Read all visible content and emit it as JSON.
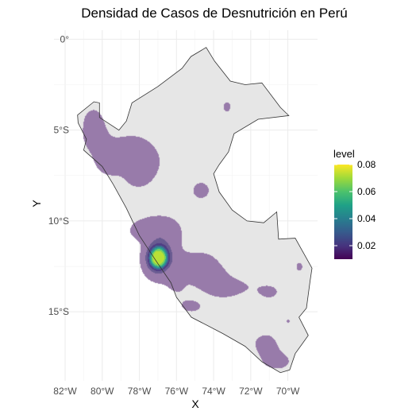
{
  "chart_data": {
    "type": "heatmap",
    "subtype": "2d-density-contour-map",
    "title": "Densidad de Casos de Desnutrición en Perú",
    "xlabel": "X",
    "ylabel": "Y",
    "xlim": [
      -82.6,
      -68.4
    ],
    "ylim": [
      -18.8,
      0.5
    ],
    "x_ticks": [
      {
        "value": -82,
        "label": "82°W"
      },
      {
        "value": -80,
        "label": "80°W"
      },
      {
        "value": -78,
        "label": "78°W"
      },
      {
        "value": -76,
        "label": "76°W"
      },
      {
        "value": -74,
        "label": "74°W"
      },
      {
        "value": -72,
        "label": "72°W"
      },
      {
        "value": -70,
        "label": "70°W"
      }
    ],
    "y_ticks": [
      {
        "value": 0,
        "label": "0°"
      },
      {
        "value": -5,
        "label": "5°S"
      },
      {
        "value": -10,
        "label": "10°S"
      },
      {
        "value": -15,
        "label": "15°S"
      }
    ],
    "grid": true,
    "legend": {
      "title": "level",
      "position": "right",
      "colormap": "viridis",
      "range": [
        0.01,
        0.08
      ],
      "ticks": [
        {
          "value": 0.02,
          "label": "0.02"
        },
        {
          "value": 0.04,
          "label": "0.04"
        },
        {
          "value": 0.06,
          "label": "0.06"
        },
        {
          "value": 0.08,
          "label": "0.08"
        }
      ]
    },
    "colors": {
      "country_fill": "#e6e6e6",
      "country_border": "#333333",
      "grid": "#ebebeb",
      "level_low": "#8f6fa3",
      "level_mid": "#5b4b87",
      "peak_colors": [
        "#46337e",
        "#31688e",
        "#1f9e89",
        "#6ece58",
        "#b5de2b"
      ]
    },
    "peru_outline": [
      [
        -81.33,
        -4.17
      ],
      [
        -80.45,
        -3.44
      ],
      [
        -80.15,
        -3.5
      ],
      [
        -80.15,
        -4.3
      ],
      [
        -79.1,
        -5.0
      ],
      [
        -78.7,
        -4.5
      ],
      [
        -78.4,
        -3.5
      ],
      [
        -77.0,
        -2.6
      ],
      [
        -75.7,
        -1.6
      ],
      [
        -75.22,
        -0.95
      ],
      [
        -74.4,
        -0.45
      ],
      [
        -73.95,
        -1.2
      ],
      [
        -73.1,
        -2.3
      ],
      [
        -72.3,
        -2.5
      ],
      [
        -71.4,
        -2.4
      ],
      [
        -70.4,
        -3.75
      ],
      [
        -69.95,
        -4.2
      ],
      [
        -71.6,
        -4.4
      ],
      [
        -72.9,
        -5.2
      ],
      [
        -73.2,
        -6.2
      ],
      [
        -73.7,
        -6.9
      ],
      [
        -74.0,
        -7.4
      ],
      [
        -73.7,
        -8.4
      ],
      [
        -73.0,
        -9.4
      ],
      [
        -72.2,
        -10.0
      ],
      [
        -71.3,
        -10.1
      ],
      [
        -70.6,
        -9.5
      ],
      [
        -70.5,
        -11.0
      ],
      [
        -69.6,
        -10.95
      ],
      [
        -68.7,
        -12.6
      ],
      [
        -68.8,
        -13.3
      ],
      [
        -69.0,
        -14.8
      ],
      [
        -69.4,
        -15.3
      ],
      [
        -68.9,
        -16.3
      ],
      [
        -69.6,
        -17.3
      ],
      [
        -69.9,
        -18.2
      ],
      [
        -70.4,
        -18.35
      ],
      [
        -71.4,
        -17.75
      ],
      [
        -72.3,
        -16.9
      ],
      [
        -73.5,
        -16.2
      ],
      [
        -75.2,
        -15.3
      ],
      [
        -76.0,
        -14.2
      ],
      [
        -76.3,
        -13.4
      ],
      [
        -77.1,
        -12.2
      ],
      [
        -78.0,
        -10.8
      ],
      [
        -78.7,
        -9.3
      ],
      [
        -79.4,
        -8.0
      ],
      [
        -80.0,
        -7.0
      ],
      [
        -81.0,
        -6.1
      ],
      [
        -80.85,
        -5.5
      ],
      [
        -81.3,
        -4.6
      ],
      [
        -81.33,
        -4.17
      ]
    ],
    "density_hotspots": [
      {
        "lon": -80.5,
        "lat": -4.5,
        "sx": 0.55,
        "sy": 0.75,
        "w": 0.7
      },
      {
        "lon": -80.4,
        "lat": -5.4,
        "sx": 0.5,
        "sy": 0.5,
        "w": 0.5
      },
      {
        "lon": -79.6,
        "lat": -6.3,
        "sx": 0.9,
        "sy": 0.6,
        "w": 0.6
      },
      {
        "lon": -79.7,
        "lat": -6.9,
        "sx": 0.45,
        "sy": 0.45,
        "w": 0.6
      },
      {
        "lon": -78.3,
        "lat": -6.2,
        "sx": 0.9,
        "sy": 0.85,
        "w": 0.75
      },
      {
        "lon": -77.6,
        "lat": -6.8,
        "sx": 0.6,
        "sy": 0.6,
        "w": 0.5
      },
      {
        "lon": -78.1,
        "lat": -7.7,
        "sx": 0.7,
        "sy": 0.6,
        "w": 0.5
      },
      {
        "lon": -73.3,
        "lat": -3.7,
        "sx": 0.3,
        "sy": 0.4,
        "w": 0.6
      },
      {
        "lon": -74.7,
        "lat": -8.3,
        "sx": 0.5,
        "sy": 0.5,
        "w": 0.7
      },
      {
        "lon": -77.6,
        "lat": -10.5,
        "sx": 0.9,
        "sy": 0.55,
        "w": 0.8
      },
      {
        "lon": -76.7,
        "lat": -10.3,
        "sx": 0.7,
        "sy": 0.5,
        "w": 0.6
      },
      {
        "lon": -76.4,
        "lat": -11.2,
        "sx": 0.6,
        "sy": 0.6,
        "w": 0.6
      },
      {
        "lon": -77.0,
        "lat": -12.0,
        "sx": 0.42,
        "sy": 0.5,
        "w": 4.6
      },
      {
        "lon": -77.2,
        "lat": -12.5,
        "sx": 0.6,
        "sy": 0.8,
        "w": 0.6
      },
      {
        "lon": -75.5,
        "lat": -12.3,
        "sx": 0.8,
        "sy": 0.5,
        "w": 0.6
      },
      {
        "lon": -74.5,
        "lat": -12.6,
        "sx": 0.6,
        "sy": 0.6,
        "w": 0.9
      },
      {
        "lon": -74.0,
        "lat": -13.1,
        "sx": 0.6,
        "sy": 0.45,
        "w": 0.7
      },
      {
        "lon": -73.0,
        "lat": -13.6,
        "sx": 1.0,
        "sy": 0.4,
        "w": 0.6
      },
      {
        "lon": -71.0,
        "lat": -13.9,
        "sx": 0.55,
        "sy": 0.4,
        "w": 0.6
      },
      {
        "lon": -76.0,
        "lat": -13.6,
        "sx": 0.6,
        "sy": 0.5,
        "w": 0.5
      },
      {
        "lon": -75.2,
        "lat": -14.7,
        "sx": 0.7,
        "sy": 0.4,
        "w": 0.6
      },
      {
        "lon": -73.5,
        "lat": -13.8,
        "sx": 0.6,
        "sy": 0.4,
        "w": 0.4
      },
      {
        "lon": -69.4,
        "lat": -12.5,
        "sx": 0.25,
        "sy": 0.35,
        "w": 0.6
      },
      {
        "lon": -70.0,
        "lat": -15.5,
        "sx": 0.12,
        "sy": 0.15,
        "w": 0.6
      },
      {
        "lon": -71.3,
        "lat": -16.7,
        "sx": 0.5,
        "sy": 0.4,
        "w": 0.6
      },
      {
        "lon": -71.1,
        "lat": -17.2,
        "sx": 0.4,
        "sy": 0.6,
        "w": 0.6
      },
      {
        "lon": -70.4,
        "lat": -17.7,
        "sx": 0.5,
        "sy": 0.4,
        "w": 0.7
      },
      {
        "lon": -70.9,
        "lat": -17.4,
        "sx": 0.3,
        "sy": 0.3,
        "w": 0.3
      }
    ]
  }
}
